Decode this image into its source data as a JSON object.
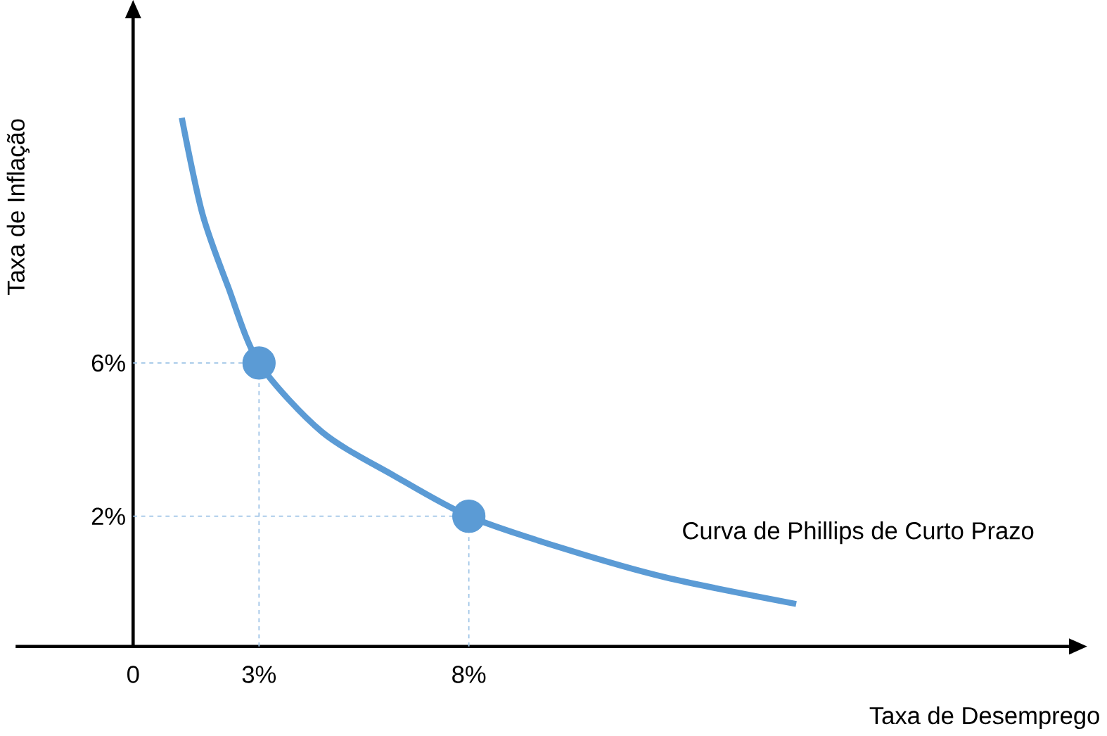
{
  "chart_data": {
    "type": "line",
    "xlabel": "Taxa de Desemprego",
    "ylabel": "Taxa de Inflação",
    "xlim": [
      -2.8,
      22.3
    ],
    "ylim": [
      -1.4,
      15
    ],
    "xticks": [
      0,
      {
        "value": 3,
        "label": "3%"
      },
      {
        "value": 8,
        "label": "8%"
      }
    ],
    "yticks": [
      {
        "value": 2,
        "label": "2%"
      },
      {
        "value": 6,
        "label": "6%"
      }
    ],
    "grid": false,
    "legend": false,
    "series": [
      {
        "name": "Curva de Phillips de Curto Prazo",
        "color": "#5b9bd5",
        "x": [
          1.16,
          1.65,
          2.26,
          3,
          4.5,
          6.2,
          8,
          10.25,
          12.7,
          15.8
        ],
        "values": [
          12.4,
          9.9,
          8.0,
          6,
          4.2,
          3.07,
          2,
          1.16,
          0.4,
          -0.29
        ],
        "marker": "none",
        "line_style": "solid"
      },
      {
        "type": "line",
        "color": "#9dc3e6",
        "x": [
          0,
          3,
          3
        ],
        "values": [
          6,
          6,
          -1.4
        ],
        "marker": "none",
        "line_style": "dashed"
      },
      {
        "type": "line",
        "color": "#9dc3e6",
        "x": [
          0,
          8,
          8
        ],
        "values": [
          2,
          2,
          -1.4
        ],
        "marker": "none",
        "line_style": "dashed"
      },
      {
        "type": "scatter",
        "color": "#5b9bd5",
        "x": [
          3,
          8
        ],
        "values": [
          6,
          2
        ],
        "marker": "circle"
      }
    ]
  }
}
